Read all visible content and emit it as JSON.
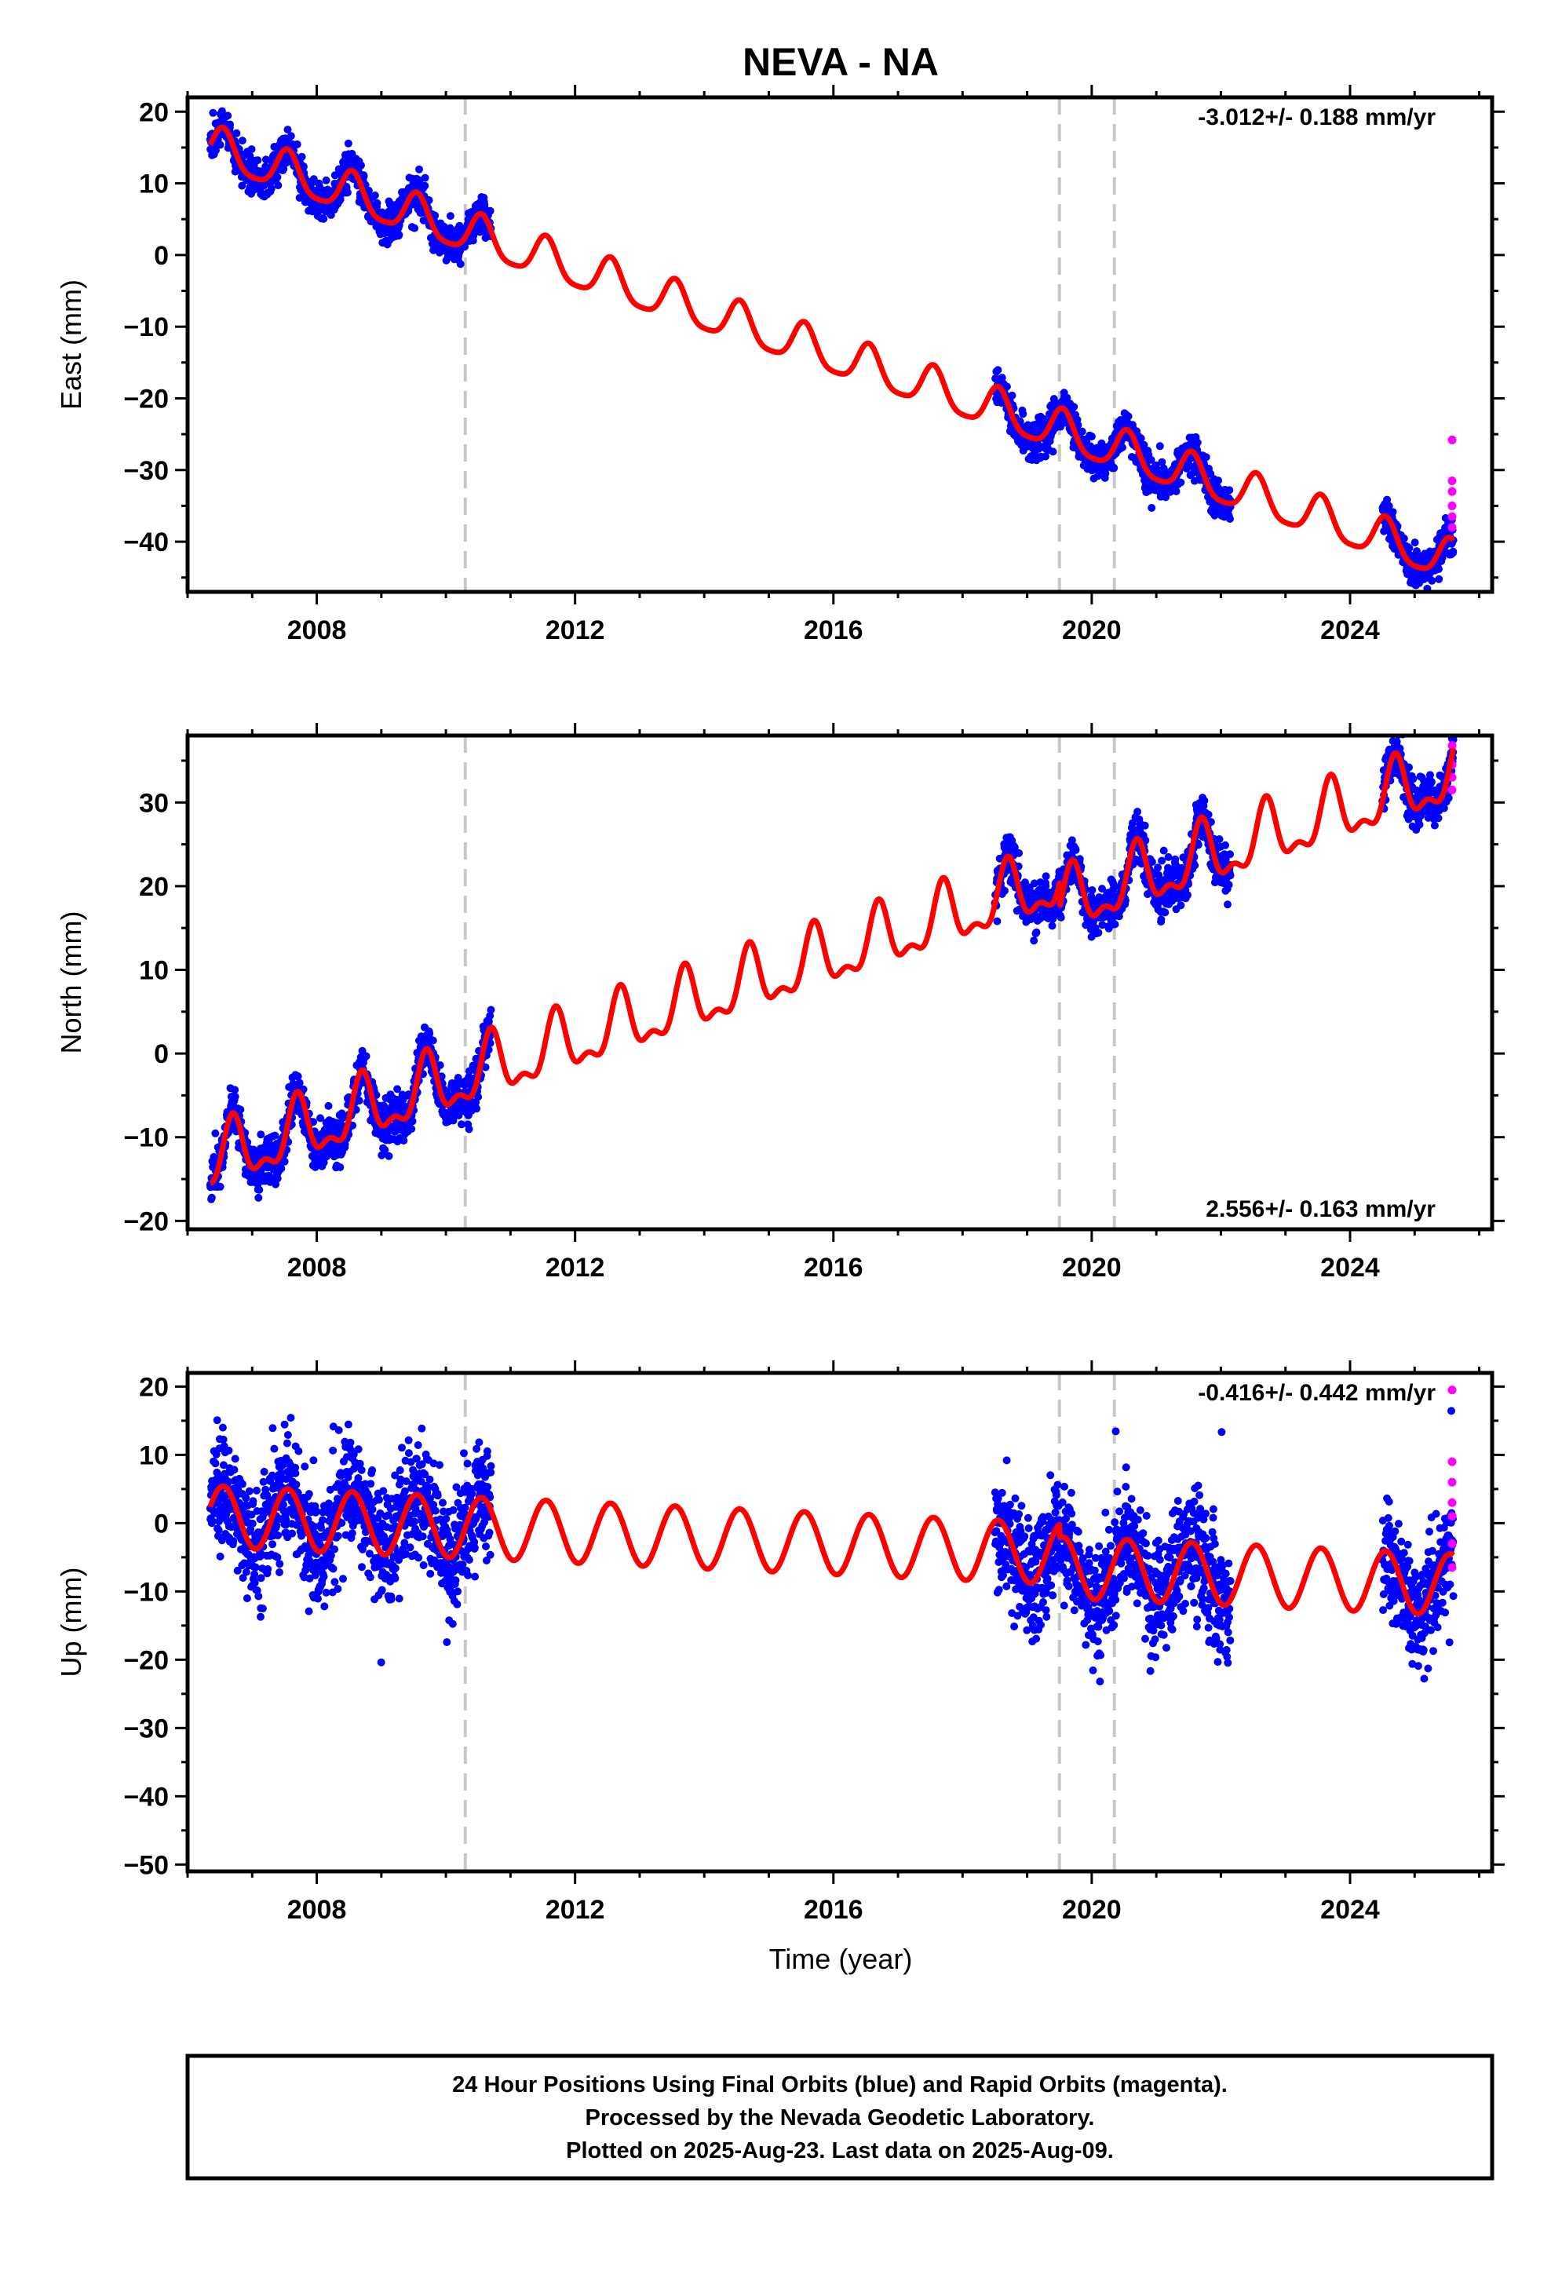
{
  "title": "NEVA - NA",
  "xlabel": "Time (year)",
  "footer": {
    "line1": "24 Hour Positions Using Final Orbits (blue) and Rapid Orbits (magenta).",
    "line2": "Processed by the Nevada Geodetic Laboratory.",
    "line3": "Plotted on 2025-Aug-23. Last data on 2025-Aug-09."
  },
  "colors": {
    "final": "#0000ff",
    "rapid": "#ff00ff",
    "model": "#ff0000",
    "event": "#c8c8c8",
    "frame": "#000000"
  },
  "chart_data": [
    {
      "type": "scatter",
      "id": "east",
      "ylabel": "East (mm)",
      "rate_text": "-3.012+/- 0.188 mm/yr",
      "rate_position": "top-right",
      "xlim": [
        2006.0,
        2026.2
      ],
      "ylim": [
        -47,
        22
      ],
      "xticks": [
        2008,
        2012,
        2016,
        2020,
        2024
      ],
      "yticks": [
        -40,
        -30,
        -20,
        -10,
        0,
        10,
        20
      ],
      "event_lines": [
        2010.3,
        2019.5,
        2020.35
      ],
      "data_segments": [
        [
          2006.35,
          2010.7
        ],
        [
          2018.5,
          2022.15
        ],
        [
          2024.5,
          2025.6
        ]
      ],
      "model": {
        "t0": 2006.35,
        "y0": 15.0,
        "rate": -3.012,
        "annual": 2.8,
        "annual_phase_year": 2006.55,
        "semiannual": 0.6,
        "offsets": []
      },
      "scatter_sd": 1.3,
      "rapid_points": [
        [
          2025.58,
          -25.8
        ],
        [
          2025.58,
          -31.5
        ],
        [
          2025.58,
          -33.0
        ],
        [
          2025.58,
          -35.0
        ],
        [
          2025.58,
          -36.5
        ],
        [
          2025.58,
          -38.0
        ]
      ]
    },
    {
      "type": "scatter",
      "id": "north",
      "ylabel": "North (mm)",
      "rate_text": "2.556+/- 0.163 mm/yr",
      "rate_position": "bottom-right",
      "xlim": [
        2006.0,
        2026.2
      ],
      "ylim": [
        -21,
        38
      ],
      "xticks": [
        2008,
        2012,
        2016,
        2020,
        2024
      ],
      "yticks": [
        -20,
        -10,
        0,
        10,
        20,
        30
      ],
      "event_lines": [
        2010.3,
        2019.5,
        2020.35
      ],
      "data_segments": [
        [
          2006.35,
          2010.7
        ],
        [
          2018.5,
          2022.15
        ],
        [
          2024.5,
          2025.6
        ]
      ],
      "model": {
        "t0": 2006.35,
        "y0": -13.0,
        "rate": 2.556,
        "annual": 3.4,
        "annual_phase_year": 2006.7,
        "semiannual": 1.6,
        "offsets": [
          [
            2019.5,
            -3.0
          ]
        ]
      },
      "scatter_sd": 1.4,
      "rapid_points": [
        [
          2025.58,
          31.5
        ],
        [
          2025.58,
          33.0
        ],
        [
          2025.58,
          34.5
        ],
        [
          2025.58,
          36.8
        ]
      ]
    },
    {
      "type": "scatter",
      "id": "up",
      "ylabel": "Up (mm)",
      "rate_text": "-0.416+/- 0.442 mm/yr",
      "rate_position": "top-right",
      "xlim": [
        2006.0,
        2026.2
      ],
      "ylim": [
        -51,
        22
      ],
      "xticks": [
        2008,
        2012,
        2016,
        2020,
        2024
      ],
      "yticks": [
        -50,
        -40,
        -30,
        -20,
        -10,
        0,
        10,
        20
      ],
      "event_lines": [
        2010.3,
        2019.5,
        2020.35
      ],
      "data_segments": [
        [
          2006.35,
          2010.7
        ],
        [
          2018.5,
          2022.15
        ],
        [
          2024.5,
          2025.6
        ]
      ],
      "model": {
        "t0": 2006.35,
        "y0": 1.0,
        "rate": -0.416,
        "annual": 4.5,
        "annual_phase_year": 2006.55,
        "semiannual": 0.0,
        "offsets": [
          [
            2019.5,
            -2.0
          ]
        ]
      },
      "scatter_sd": 4.2,
      "rapid_points": [
        [
          2025.58,
          19.5
        ],
        [
          2025.58,
          9.0
        ],
        [
          2025.58,
          6.0
        ],
        [
          2025.58,
          3.0
        ],
        [
          2025.58,
          1.0
        ],
        [
          2025.58,
          -3.0
        ],
        [
          2025.58,
          -6.5
        ]
      ]
    }
  ]
}
